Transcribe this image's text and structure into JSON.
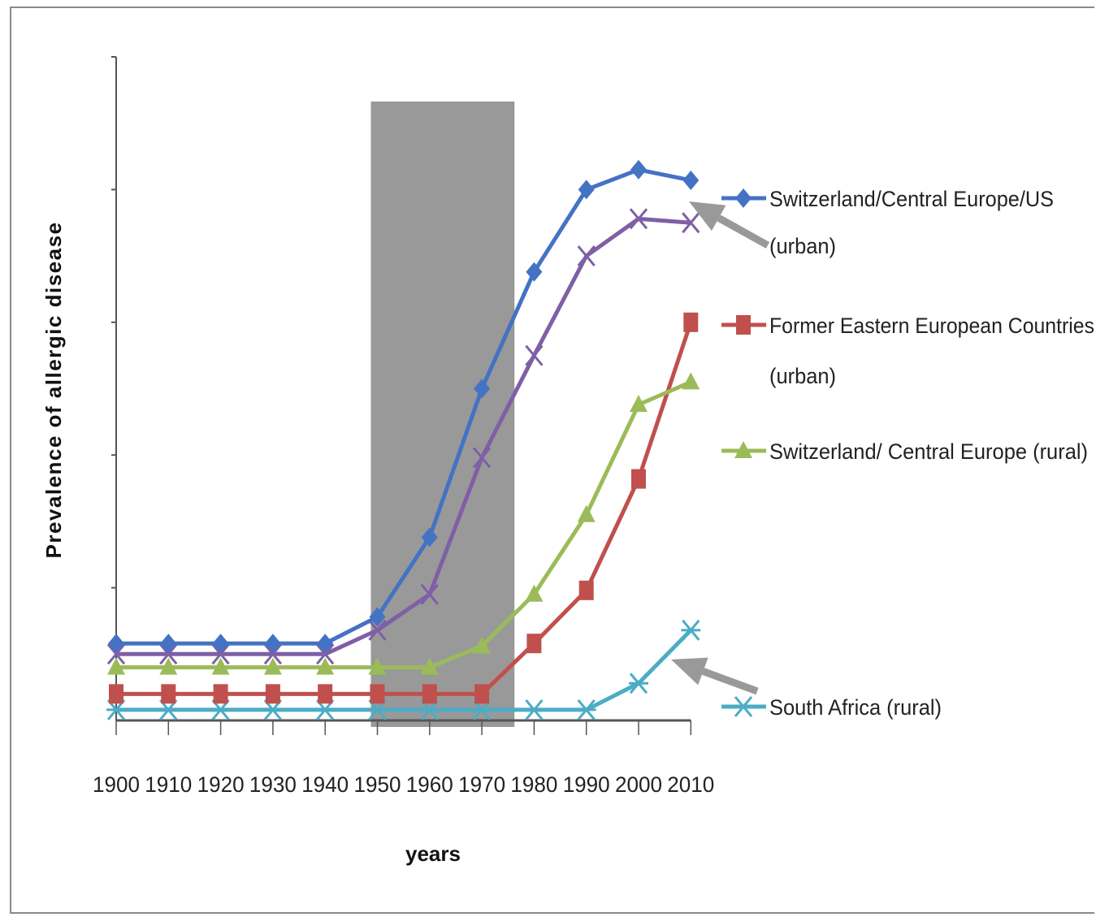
{
  "chart_data": {
    "type": "line",
    "title": "",
    "xlabel": "years",
    "ylabel": "Prevalence of allergic disease",
    "x": [
      1900,
      1910,
      1920,
      1930,
      1940,
      1950,
      1960,
      1970,
      1980,
      1990,
      2000,
      2010
    ],
    "ylim": [
      0,
      5
    ],
    "y_tick_values": [
      1,
      2,
      3,
      4,
      5
    ],
    "y_tick_labels_shown": false,
    "grid": false,
    "shaded_region": {
      "x_start": 1950,
      "x_end": 1975,
      "color": "#999999"
    },
    "series": [
      {
        "name": "Switzerland/Central Europe/US (urban)",
        "label_lines": [
          "Switzerland/Central Europe/US",
          "(urban)"
        ],
        "color": "#4472C4",
        "marker": "diamond",
        "values": [
          0.58,
          0.58,
          0.58,
          0.58,
          0.58,
          0.78,
          1.38,
          2.5,
          3.38,
          4.0,
          4.15,
          4.07
        ]
      },
      {
        "name": "",
        "color": "#7F5FA6",
        "marker": "x",
        "values": [
          0.5,
          0.5,
          0.5,
          0.5,
          0.5,
          0.68,
          0.95,
          1.98,
          2.75,
          3.5,
          3.78,
          3.75
        ]
      },
      {
        "name": "Former Eastern European Countries (urban)",
        "label_lines": [
          "Former Eastern European Countries",
          "(urban)"
        ],
        "color": "#C0504D",
        "marker": "square",
        "values": [
          0.2,
          0.2,
          0.2,
          0.2,
          0.2,
          0.2,
          0.2,
          0.2,
          0.58,
          0.98,
          1.82,
          3.0
        ]
      },
      {
        "name": "Switzerland/ Central Europe (rural)",
        "label_lines": [
          "Switzerland/ Central Europe (rural)"
        ],
        "color": "#9BBB59",
        "marker": "triangle",
        "values": [
          0.4,
          0.4,
          0.4,
          0.4,
          0.4,
          0.4,
          0.4,
          0.56,
          0.95,
          1.55,
          2.38,
          2.55
        ]
      },
      {
        "name": "South Africa (rural)",
        "label_lines": [
          "South Africa (rural)"
        ],
        "color": "#4BACC6",
        "marker": "star",
        "values": [
          0.08,
          0.08,
          0.08,
          0.08,
          0.08,
          0.08,
          0.08,
          0.08,
          0.08,
          0.08,
          0.28,
          0.68
        ]
      }
    ],
    "legend_placement": "right",
    "annotations": [
      {
        "type": "arrow",
        "color": "#999999",
        "points_to": "Switzerland/Central Europe/US (urban)"
      },
      {
        "type": "arrow",
        "color": "#999999",
        "points_to": "South Africa (rural)"
      }
    ]
  }
}
